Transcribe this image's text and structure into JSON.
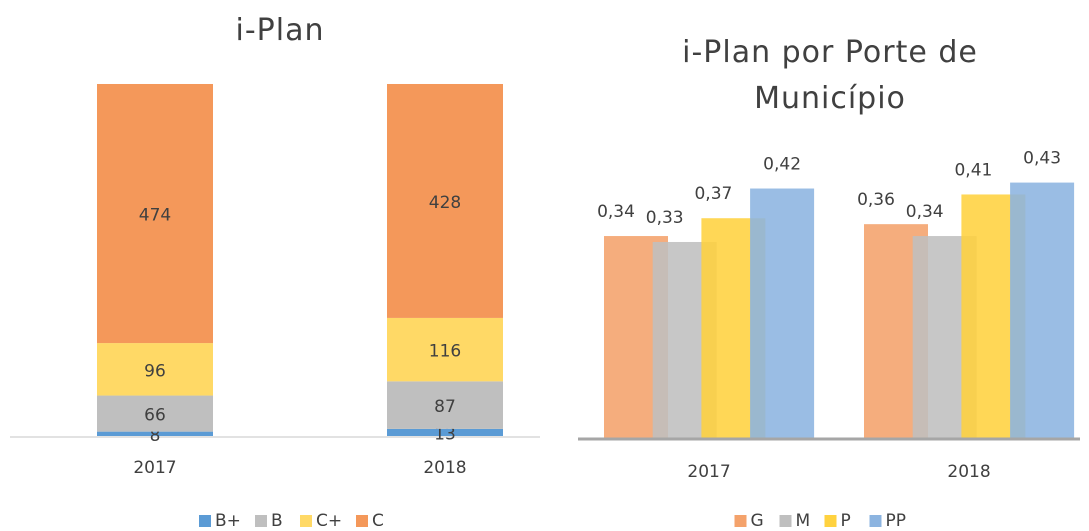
{
  "chart_data": [
    {
      "type": "stacked-bar",
      "title": "i-Plan",
      "categories": [
        "2017",
        "2018"
      ],
      "series": [
        {
          "name": "B+",
          "color": "#5b9bd5",
          "values": [
            8,
            13
          ]
        },
        {
          "name": "B",
          "color": "#bfbfbf",
          "values": [
            66,
            87
          ]
        },
        {
          "name": "C+",
          "color": "#ffd966",
          "values": [
            96,
            116
          ]
        },
        {
          "name": "C",
          "color": "#f4985a",
          "values": [
            474,
            428
          ]
        }
      ]
    },
    {
      "type": "overlap-bar",
      "title": "i-Plan por Porte de Município",
      "categories": [
        "2017",
        "2018"
      ],
      "series": [
        {
          "name": "G",
          "color": "#f4a26b",
          "values": [
            0.34,
            0.36
          ],
          "value_labels": [
            "0,34",
            "0,36"
          ]
        },
        {
          "name": "M",
          "color": "#bfbfbf",
          "values": [
            0.33,
            0.34
          ],
          "value_labels": [
            "0,33",
            "0,34"
          ]
        },
        {
          "name": "P",
          "color": "#ffd23f",
          "values": [
            0.37,
            0.41
          ],
          "value_labels": [
            "0,37",
            "0,41"
          ]
        },
        {
          "name": "PP",
          "color": "#8cb4e0",
          "values": [
            0.42,
            0.43
          ],
          "value_labels": [
            "0,42",
            "0,43"
          ]
        }
      ]
    }
  ]
}
